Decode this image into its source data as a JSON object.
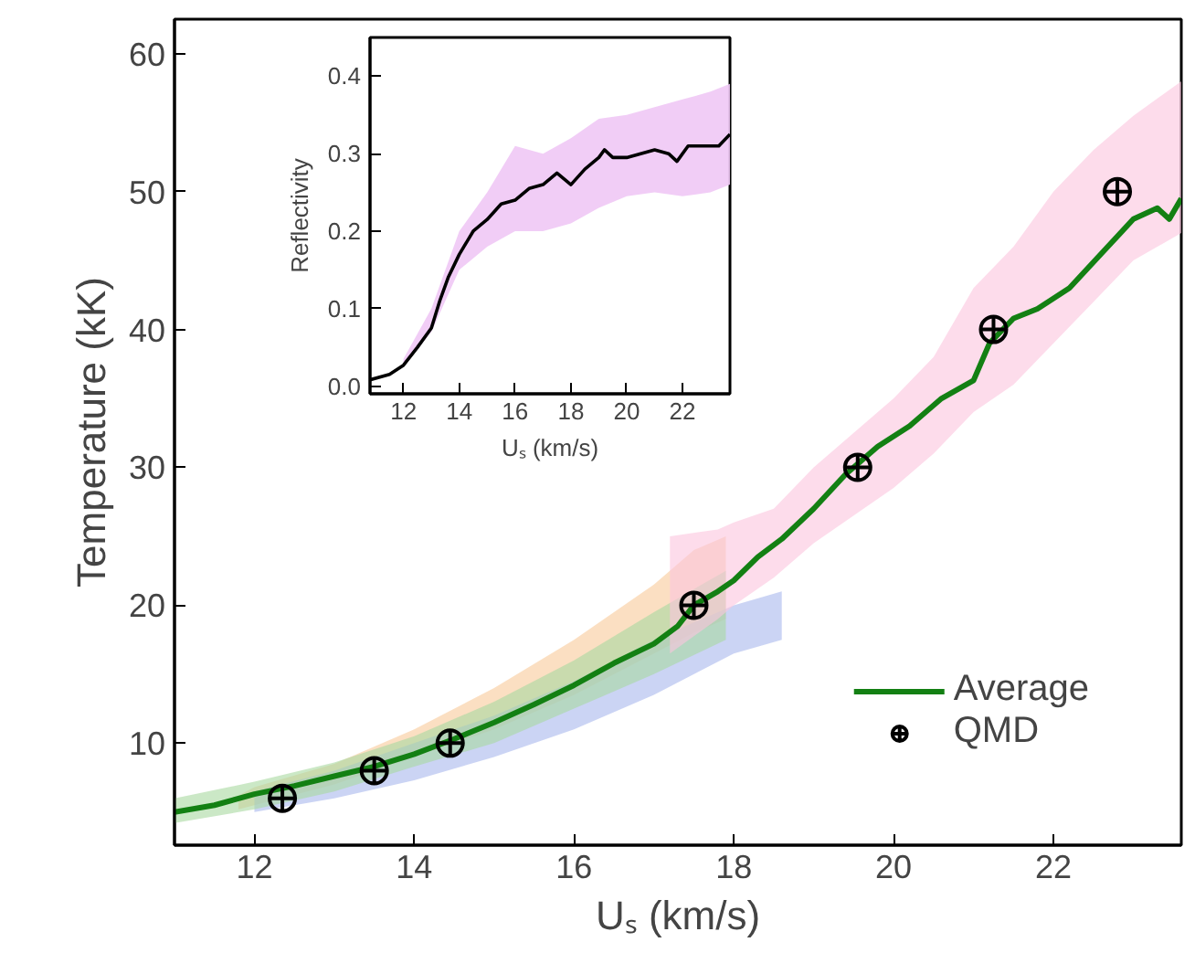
{
  "chart_data": [
    {
      "type": "line",
      "xlabel": "Uₛ (km/s)",
      "ylabel": "Temperature (kK)",
      "xlim": [
        11,
        23.6
      ],
      "ylim": [
        2.6,
        62.5
      ],
      "xticks": [
        12,
        14,
        16,
        18,
        20,
        22
      ],
      "yticks": [
        10,
        20,
        30,
        40,
        50,
        60
      ],
      "legend": "bottom right",
      "grid": false,
      "series": [
        {
          "color": "#f9c99a",
          "x": [
            11.8,
            12,
            13,
            14,
            15,
            16,
            17,
            17.5,
            17.9
          ],
          "values": [
            null,
            null,
            null,
            null,
            null,
            null,
            null,
            null,
            null
          ],
          "lower": [
            5.2,
            5.5,
            7,
            9,
            11,
            13.5,
            16.5,
            18,
            19
          ],
          "upper": [
            6.2,
            6.8,
            8.5,
            11,
            14,
            17.5,
            21.5,
            24,
            25
          ]
        },
        {
          "color": "#a9b8ec",
          "x": [
            12,
            13,
            14,
            15,
            16,
            17,
            18,
            18.6
          ],
          "values": [
            null,
            null,
            null,
            null,
            null,
            null,
            null,
            null
          ],
          "lower": [
            5,
            6,
            7.3,
            9,
            11,
            13.5,
            16.5,
            17.5
          ],
          "upper": [
            6.5,
            8,
            10,
            12,
            14.5,
            17.5,
            20,
            21
          ]
        },
        {
          "color": "#a8d9a0",
          "x": [
            11,
            12,
            13,
            14,
            15,
            16,
            17,
            17.9
          ],
          "values": [
            null,
            null,
            null,
            null,
            null,
            null,
            null,
            null
          ],
          "lower": [
            4.2,
            5.2,
            6.5,
            8.3,
            10,
            12.5,
            15,
            17.5
          ],
          "upper": [
            6,
            7.2,
            8.6,
            10.5,
            13,
            16,
            19.5,
            22.5
          ]
        },
        {
          "color": "#fbc5dd",
          "x": [
            17.2,
            17.8,
            18,
            18.5,
            19,
            19.5,
            20,
            20.5,
            21,
            21.5,
            22,
            22.5,
            23,
            23.6
          ],
          "values": [
            null,
            null,
            null,
            null,
            null,
            null,
            null,
            null,
            null,
            null,
            null,
            null,
            null,
            null
          ],
          "lower": [
            16.5,
            19,
            20,
            22,
            24.5,
            26.5,
            28.5,
            31,
            34,
            36,
            39,
            42,
            45,
            47
          ],
          "upper": [
            25,
            25.5,
            26,
            27,
            30,
            32.5,
            35,
            38,
            43,
            46,
            50,
            53,
            55.5,
            58
          ]
        },
        {
          "name": "Average",
          "color": "#138013",
          "x": [
            11,
            11.5,
            12,
            12.5,
            13,
            13.5,
            14,
            14.5,
            15,
            15.5,
            16,
            16.5,
            17,
            17.3,
            17.5,
            17.8,
            18,
            18.3,
            18.6,
            19,
            19.4,
            19.8,
            20.2,
            20.6,
            21,
            21.2,
            21.5,
            21.8,
            22.2,
            22.6,
            23,
            23.3,
            23.45,
            23.6
          ],
          "values": [
            5.0,
            5.5,
            6.3,
            6.9,
            7.6,
            8.3,
            9.2,
            10.3,
            11.5,
            12.8,
            14.2,
            15.8,
            17.2,
            18.5,
            20.0,
            21.0,
            21.8,
            23.5,
            24.8,
            27,
            29.5,
            31.5,
            33,
            35,
            36.3,
            39,
            40.8,
            41.5,
            43,
            45.5,
            48,
            48.8,
            48,
            49.5
          ]
        },
        {
          "type": "scatter",
          "name": "QMD",
          "color": "#000000",
          "marker": "circle_cross",
          "x": [
            12.35,
            13.5,
            14.45,
            17.5,
            19.55,
            21.25,
            22.8
          ],
          "values": [
            6,
            8,
            10,
            20,
            30,
            40,
            50
          ]
        }
      ]
    },
    {
      "type": "line",
      "xlabel": "Uₛ (km/s)",
      "ylabel": "Reflectivity",
      "xlim": [
        10.8,
        23.7
      ],
      "ylim": [
        -0.01,
        0.45
      ],
      "xticks": [
        12,
        14,
        16,
        18,
        20,
        22
      ],
      "yticks": [
        {
          "value": 0,
          "label": "0.0"
        },
        0.1,
        0.2,
        0.3,
        0.4
      ],
      "grid": false,
      "series": [
        {
          "color": "#f0c8f5",
          "x": [
            12,
            13,
            14,
            15,
            16,
            17,
            18,
            19,
            20,
            21,
            22,
            23,
            23.7
          ],
          "values": [
            null,
            null,
            null,
            null,
            null,
            null,
            null,
            null,
            null,
            null,
            null,
            null,
            null
          ],
          "lower": [
            0.025,
            0.07,
            0.15,
            0.18,
            0.2,
            0.2,
            0.21,
            0.23,
            0.245,
            0.25,
            0.245,
            0.25,
            0.26
          ],
          "upper": [
            0.035,
            0.1,
            0.2,
            0.25,
            0.31,
            0.3,
            0.32,
            0.345,
            0.35,
            0.36,
            0.37,
            0.38,
            0.39
          ]
        },
        {
          "color": "#000000",
          "x": [
            10.8,
            11.5,
            12,
            12.5,
            13,
            13.3,
            13.6,
            14,
            14.5,
            15,
            15.5,
            16,
            16.5,
            17,
            17.5,
            18,
            18.5,
            19,
            19.2,
            19.5,
            20,
            21,
            21.5,
            21.8,
            22.2,
            22.8,
            23.3,
            23.7
          ],
          "values": [
            0.008,
            0.015,
            0.027,
            0.05,
            0.075,
            0.11,
            0.14,
            0.17,
            0.2,
            0.215,
            0.235,
            0.24,
            0.255,
            0.26,
            0.275,
            0.26,
            0.28,
            0.295,
            0.305,
            0.295,
            0.295,
            0.305,
            0.3,
            0.29,
            0.31,
            0.31,
            0.31,
            0.325
          ]
        }
      ]
    }
  ]
}
